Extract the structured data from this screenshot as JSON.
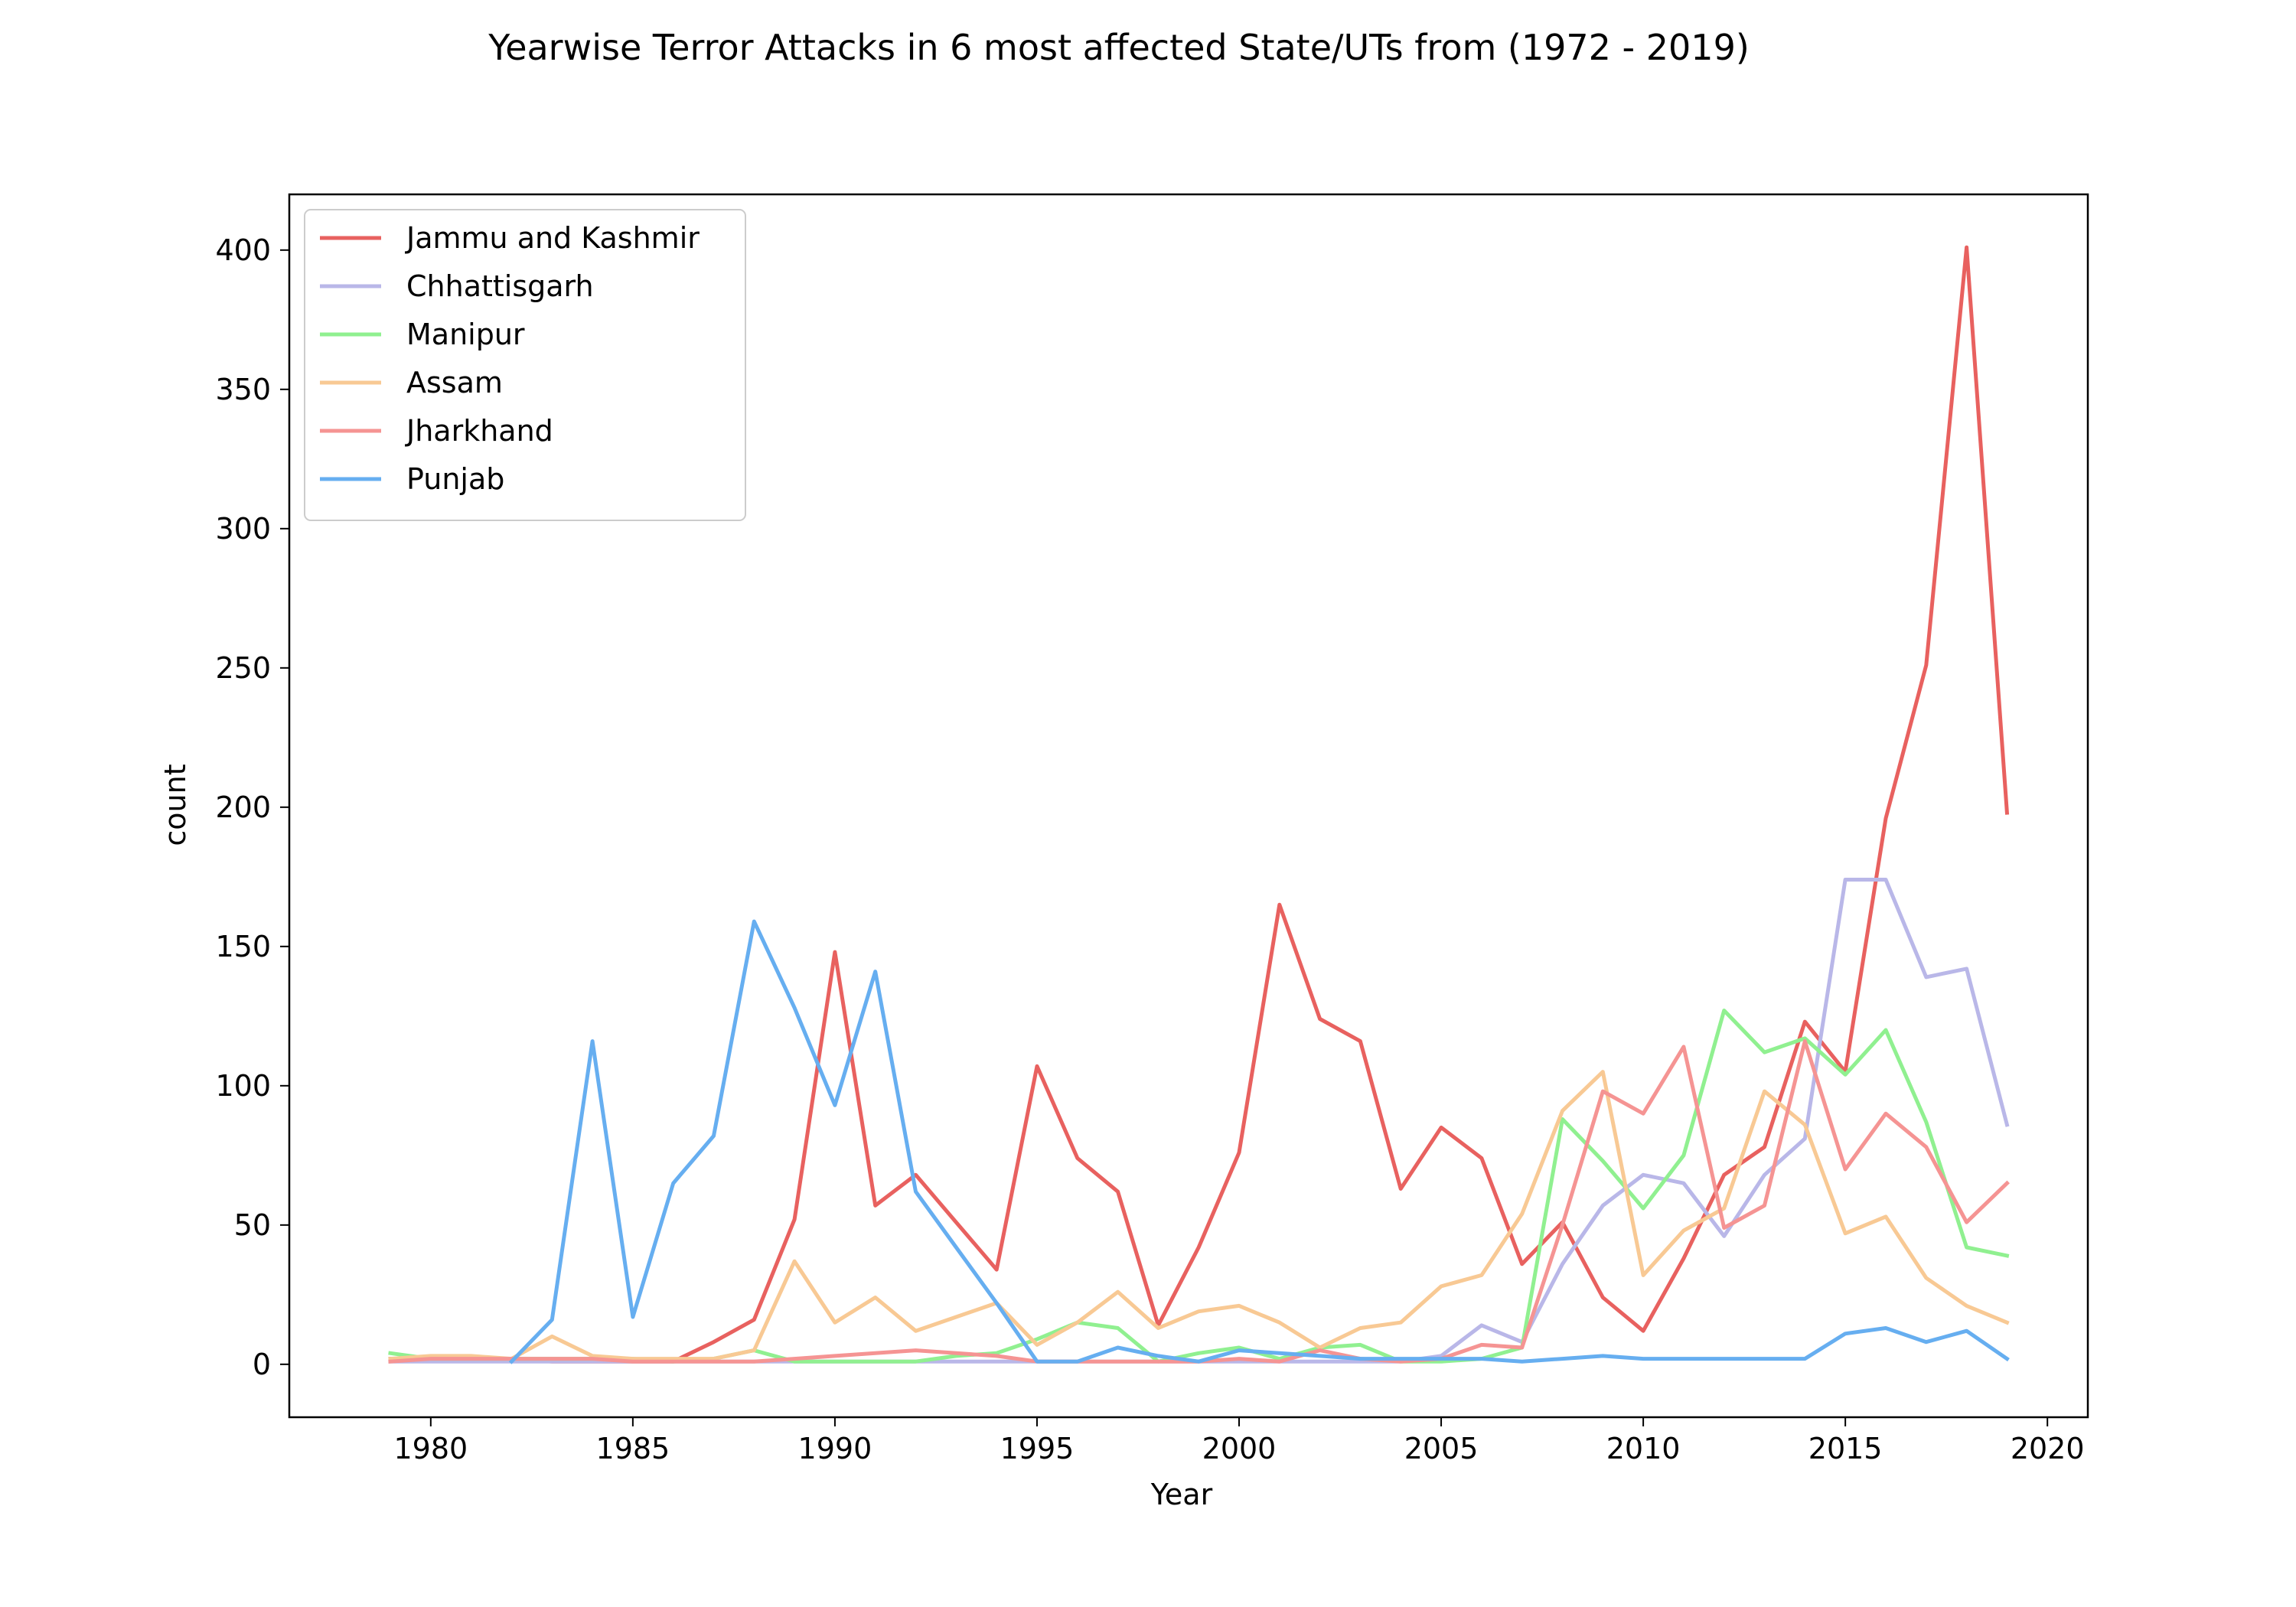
{
  "chart_data": {
    "type": "line",
    "title": "Yearwise Terror Attacks in 6 most affected State/UTs from (1972 - 2019)",
    "xlabel": "Year",
    "ylabel": "count",
    "xlim": [
      1976.5,
      2021
    ],
    "ylim": [
      -19,
      420
    ],
    "xticks": [
      1980,
      1985,
      1990,
      1995,
      2000,
      2005,
      2010,
      2015,
      2020
    ],
    "yticks": [
      0,
      50,
      100,
      150,
      200,
      250,
      300,
      350,
      400
    ],
    "grid": false,
    "legend_position": "top-left",
    "series": [
      {
        "name": "Jammu and Kashmir",
        "color": "#e8615f",
        "x": [
          1979,
          1980,
          1981,
          1982,
          1983,
          1984,
          1985,
          1986,
          1987,
          1988,
          1989,
          1990,
          1991,
          1992,
          1993,
          1994,
          1995,
          1996,
          1997,
          1998,
          1999,
          2000,
          2001,
          2002,
          2003,
          2004,
          2005,
          2006,
          2007,
          2008,
          2009,
          2010,
          2011,
          2012,
          2013,
          2014,
          2015,
          2016,
          2017,
          2018,
          2019
        ],
        "values": [
          2,
          2,
          2,
          2,
          1,
          1,
          1,
          1,
          8,
          16,
          52,
          148,
          57,
          68,
          51,
          34,
          107,
          74,
          62,
          14,
          42,
          76,
          165,
          124,
          116,
          63,
          85,
          74,
          36,
          51,
          24,
          12,
          38,
          68,
          78,
          123,
          105,
          196,
          251,
          401,
          198
        ]
      },
      {
        "name": "Chhattisgarh",
        "color": "#b9b7e8",
        "x": [
          1979,
          1980,
          1981,
          1982,
          1983,
          1984,
          1985,
          1986,
          1987,
          1988,
          1989,
          1990,
          1991,
          1992,
          1993,
          1994,
          1995,
          1996,
          1997,
          1998,
          1999,
          2000,
          2001,
          2002,
          2003,
          2004,
          2005,
          2006,
          2007,
          2008,
          2009,
          2010,
          2011,
          2012,
          2013,
          2014,
          2015,
          2016,
          2017,
          2018,
          2019
        ],
        "values": [
          1,
          1,
          1,
          1,
          1,
          1,
          1,
          1,
          1,
          1,
          1,
          1,
          1,
          1,
          1,
          1,
          1,
          1,
          1,
          1,
          1,
          1,
          1,
          1,
          1,
          1,
          3,
          14,
          8,
          36,
          57,
          68,
          65,
          46,
          68,
          81,
          174,
          174,
          139,
          142,
          86
        ]
      },
      {
        "name": "Manipur",
        "color": "#90f090",
        "x": [
          1979,
          1980,
          1981,
          1982,
          1983,
          1984,
          1985,
          1986,
          1987,
          1988,
          1989,
          1990,
          1991,
          1992,
          1993,
          1994,
          1995,
          1996,
          1997,
          1998,
          1999,
          2000,
          2001,
          2002,
          2003,
          2004,
          2005,
          2006,
          2007,
          2008,
          2009,
          2010,
          2011,
          2012,
          2013,
          2014,
          2015,
          2016,
          2017,
          2018,
          2019
        ],
        "values": [
          4,
          2,
          2,
          2,
          2,
          2,
          2,
          1,
          2,
          5,
          1,
          1,
          1,
          1,
          3,
          4,
          9,
          15,
          13,
          1,
          4,
          6,
          2,
          6,
          7,
          1,
          1,
          2,
          6,
          88,
          73,
          56,
          75,
          127,
          112,
          117,
          104,
          120,
          87,
          42,
          39
        ]
      },
      {
        "name": "Assam",
        "color": "#f8c994",
        "x": [
          1979,
          1980,
          1981,
          1982,
          1983,
          1984,
          1985,
          1986,
          1987,
          1988,
          1989,
          1990,
          1991,
          1992,
          1993,
          1994,
          1995,
          1996,
          1997,
          1998,
          1999,
          2000,
          2001,
          2002,
          2003,
          2004,
          2005,
          2006,
          2007,
          2008,
          2009,
          2010,
          2011,
          2012,
          2013,
          2014,
          2015,
          2016,
          2017,
          2018,
          2019
        ],
        "values": [
          2,
          3,
          3,
          2,
          10,
          3,
          2,
          2,
          2,
          5,
          37,
          15,
          24,
          12,
          17,
          22,
          7,
          15,
          26,
          13,
          19,
          21,
          15,
          6,
          13,
          15,
          28,
          32,
          54,
          91,
          105,
          32,
          48,
          56,
          98,
          86,
          47,
          53,
          31,
          21,
          15
        ]
      },
      {
        "name": "Jharkhand",
        "color": "#f59493",
        "x": [
          1979,
          1980,
          1981,
          1982,
          1983,
          1984,
          1985,
          1986,
          1987,
          1988,
          1989,
          1990,
          1991,
          1992,
          1993,
          1994,
          1995,
          1996,
          1997,
          1998,
          1999,
          2000,
          2001,
          2002,
          2003,
          2004,
          2005,
          2006,
          2007,
          2008,
          2009,
          2010,
          2011,
          2012,
          2013,
          2014,
          2015,
          2016,
          2017,
          2018,
          2019
        ],
        "values": [
          1,
          2,
          2,
          2,
          2,
          2,
          1,
          1,
          1,
          1,
          2,
          3,
          4,
          5,
          4,
          3,
          1,
          1,
          1,
          1,
          1,
          2,
          1,
          5,
          2,
          1,
          2,
          7,
          6,
          50,
          98,
          90,
          114,
          49,
          57,
          116,
          70,
          90,
          78,
          51,
          65
        ]
      },
      {
        "name": "Punjab",
        "color": "#66aef0",
        "x": [
          1982,
          1983,
          1984,
          1985,
          1986,
          1987,
          1988,
          1989,
          1990,
          1991,
          1992,
          1993,
          1994,
          1995,
          1996,
          1997,
          1998,
          1999,
          2000,
          2001,
          2002,
          2003,
          2004,
          2005,
          2006,
          2007,
          2008,
          2009,
          2010,
          2011,
          2012,
          2013,
          2014,
          2015,
          2016,
          2017,
          2018,
          2019
        ],
        "values": [
          1,
          16,
          116,
          17,
          65,
          82,
          159,
          128,
          93,
          141,
          62,
          42,
          22,
          1,
          1,
          6,
          3,
          1,
          5,
          4,
          3,
          2,
          2,
          2,
          2,
          1,
          2,
          3,
          2,
          2,
          2,
          2,
          2,
          11,
          13,
          8,
          12,
          2
        ]
      }
    ]
  }
}
